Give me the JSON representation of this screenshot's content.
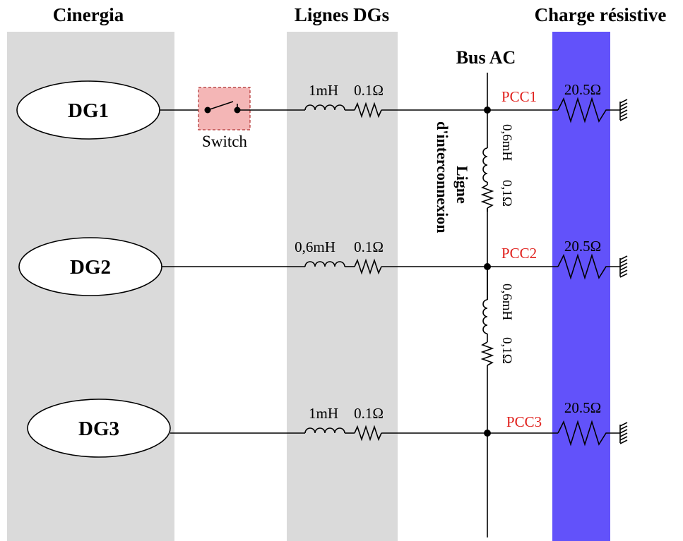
{
  "headers": {
    "left": "Cinergia",
    "middle": "Lignes DGs",
    "right": "Charge résistive"
  },
  "colors": {
    "band_gray": "#dadada",
    "band_blue": "#6252fa",
    "switch_fill": "#f4b6b6",
    "pcc_text": "#e0201c"
  },
  "bus_label": "Bus AC",
  "generators": [
    "DG1",
    "DG2",
    "DG3"
  ],
  "switch_label": "Switch",
  "lines": [
    {
      "inductance": "1mH",
      "resistance": "0.1Ω"
    },
    {
      "inductance": "0,6mH",
      "resistance": "0.1Ω"
    },
    {
      "inductance": "1mH",
      "resistance": "0.1Ω"
    }
  ],
  "pcc": [
    "PCC1",
    "PCC2",
    "PCC3"
  ],
  "loads": [
    "20.5Ω",
    "20.5Ω",
    "20.5Ω"
  ],
  "interconnection": {
    "label_line1": "Ligne",
    "label_line2": "d'interconnexion",
    "segments": [
      {
        "inductance": "0,6mH",
        "resistance": "0,1Ω"
      },
      {
        "inductance": "0,6mH",
        "resistance": "0,1Ω"
      }
    ]
  }
}
